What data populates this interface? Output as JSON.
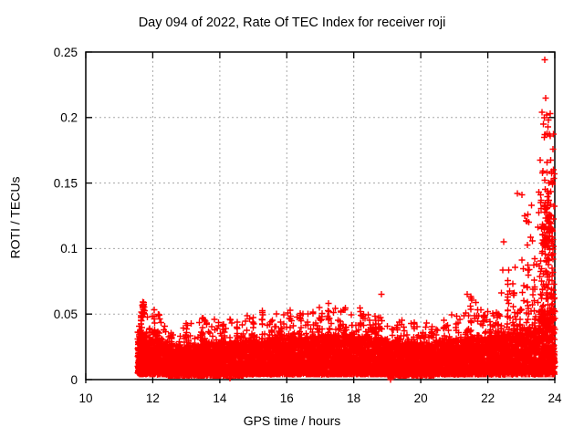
{
  "chart_data": {
    "type": "scatter",
    "title": "Day 094 of 2022, Rate Of TEC Index for receiver roji",
    "xlabel": "GPS time / hours",
    "ylabel": "ROTI / TECUs",
    "xlim": [
      10,
      24
    ],
    "ylim": [
      0,
      0.25
    ],
    "xticks": [
      10,
      12,
      14,
      16,
      18,
      20,
      22,
      24
    ],
    "xtick_labels": [
      "10",
      "12",
      "14",
      "16",
      "18",
      "20",
      "22",
      "24"
    ],
    "yticks": [
      0,
      0.05,
      0.1,
      0.15,
      0.2,
      0.25
    ],
    "ytick_labels": [
      "0",
      "0.05",
      "0.1",
      "0.15",
      "0.2",
      "0.25"
    ],
    "grid": true,
    "legend": "none",
    "marker": "plus",
    "marker_color": "#ff0000",
    "grid_color": "#a8a8a8",
    "border_color": "#000000",
    "background_color": "#ffffff",
    "data_extent": {
      "t_start": 11.55,
      "t_end": 24.0,
      "y_peak": 0.244,
      "y_peak_time": 23.7
    },
    "band_segments": [
      {
        "t0": 11.55,
        "t1": 11.82,
        "n": 260,
        "ymin": 0.004,
        "ydense": 0.034,
        "ytail": 0.05,
        "tailp": 0.05
      },
      {
        "t0": 11.82,
        "t1": 12.45,
        "n": 480,
        "ymin": 0.004,
        "ydense": 0.03,
        "ytail": 0.05,
        "tailp": 0.05
      },
      {
        "t0": 12.45,
        "t1": 13.45,
        "n": 700,
        "ymin": 0.003,
        "ydense": 0.026,
        "ytail": 0.044,
        "tailp": 0.05
      },
      {
        "t0": 13.45,
        "t1": 14.7,
        "n": 860,
        "ymin": 0.003,
        "ydense": 0.028,
        "ytail": 0.046,
        "tailp": 0.05
      },
      {
        "t0": 14.7,
        "t1": 15.6,
        "n": 620,
        "ymin": 0.004,
        "ydense": 0.03,
        "ytail": 0.05,
        "tailp": 0.06
      },
      {
        "t0": 15.6,
        "t1": 16.8,
        "n": 820,
        "ymin": 0.004,
        "ydense": 0.032,
        "ytail": 0.052,
        "tailp": 0.06
      },
      {
        "t0": 16.8,
        "t1": 17.8,
        "n": 700,
        "ymin": 0.004,
        "ydense": 0.033,
        "ytail": 0.055,
        "tailp": 0.06
      },
      {
        "t0": 17.8,
        "t1": 19.0,
        "n": 820,
        "ymin": 0.004,
        "ydense": 0.032,
        "ytail": 0.055,
        "tailp": 0.06
      },
      {
        "t0": 19.0,
        "t1": 20.4,
        "n": 920,
        "ymin": 0.003,
        "ydense": 0.028,
        "ytail": 0.046,
        "tailp": 0.05
      },
      {
        "t0": 20.4,
        "t1": 21.3,
        "n": 600,
        "ymin": 0.004,
        "ydense": 0.03,
        "ytail": 0.05,
        "tailp": 0.05
      },
      {
        "t0": 21.3,
        "t1": 21.7,
        "n": 270,
        "ymin": 0.004,
        "ydense": 0.032,
        "ytail": 0.062,
        "tailp": 0.07
      },
      {
        "t0": 21.7,
        "t1": 22.4,
        "n": 470,
        "ymin": 0.004,
        "ydense": 0.032,
        "ytail": 0.055,
        "tailp": 0.06
      },
      {
        "t0": 22.4,
        "t1": 23.0,
        "n": 400,
        "ymin": 0.004,
        "ydense": 0.036,
        "ytail": 0.09,
        "tailp": 0.07
      },
      {
        "t0": 23.0,
        "t1": 23.55,
        "n": 380,
        "ymin": 0.004,
        "ydense": 0.04,
        "ytail": 0.13,
        "tailp": 0.08
      },
      {
        "t0": 23.55,
        "t1": 24.0,
        "n": 430,
        "ymin": 0.004,
        "ydense": 0.052,
        "ytail": 0.19,
        "tailp": 0.16
      }
    ],
    "column_spikes": [
      [
        11.72,
        0.06,
        16,
        0.048,
        0.07
      ],
      [
        11.66,
        0.052,
        8,
        0.036,
        0.04
      ],
      [
        12.05,
        0.056,
        8
      ],
      [
        12.18,
        0.05,
        6
      ],
      [
        12.55,
        0.042,
        5
      ],
      [
        13.0,
        0.04,
        5
      ],
      [
        13.49,
        0.048,
        7
      ],
      [
        14.1,
        0.044,
        6
      ],
      [
        14.52,
        0.047,
        6
      ],
      [
        15.0,
        0.049,
        7
      ],
      [
        15.28,
        0.053,
        7
      ],
      [
        15.55,
        0.05,
        6
      ],
      [
        15.83,
        0.052,
        7
      ],
      [
        16.1,
        0.055,
        8
      ],
      [
        16.4,
        0.048,
        6
      ],
      [
        16.78,
        0.052,
        7
      ],
      [
        17.05,
        0.05,
        6
      ],
      [
        17.25,
        0.057,
        7
      ],
      [
        17.6,
        0.054,
        7
      ],
      [
        17.95,
        0.05,
        6
      ],
      [
        18.2,
        0.052,
        7
      ],
      [
        18.42,
        0.054,
        7
      ],
      [
        18.65,
        0.05,
        6
      ],
      [
        19.3,
        0.046,
        5
      ],
      [
        19.8,
        0.044,
        5
      ],
      [
        20.33,
        0.041,
        5
      ],
      [
        20.7,
        0.047,
        6
      ],
      [
        21.06,
        0.051,
        6
      ],
      [
        21.5,
        0.068,
        10
      ],
      [
        21.9,
        0.05,
        6
      ],
      [
        22.07,
        0.048,
        6
      ],
      [
        22.3,
        0.055,
        7
      ],
      [
        22.6,
        0.077,
        9
      ],
      [
        22.78,
        0.086,
        8
      ],
      [
        22.97,
        0.058,
        7
      ],
      [
        23.19,
        0.086,
        8
      ],
      [
        23.4,
        0.09,
        8
      ],
      [
        23.62,
        0.12,
        10,
        0.05,
        0.05
      ],
      [
        23.72,
        0.135,
        26,
        0.095,
        0.12
      ],
      [
        23.85,
        0.128,
        20,
        0.098,
        0.1
      ],
      [
        23.93,
        0.116,
        12,
        0.088,
        0.06
      ],
      [
        23.65,
        0.122,
        10,
        0.092,
        0.05
      ],
      [
        23.8,
        0.1,
        14,
        0.06,
        0.15
      ],
      [
        23.95,
        0.095,
        10,
        0.055,
        0.08
      ]
    ],
    "outliers": [
      [
        23.7,
        0.244
      ],
      [
        23.73,
        0.215
      ],
      [
        23.62,
        0.204
      ],
      [
        23.68,
        0.2
      ],
      [
        23.76,
        0.202
      ],
      [
        23.81,
        0.198
      ],
      [
        23.86,
        0.203
      ],
      [
        23.66,
        0.195
      ],
      [
        23.79,
        0.193
      ],
      [
        23.72,
        0.187
      ],
      [
        23.87,
        0.186
      ],
      [
        23.95,
        0.176
      ],
      [
        23.65,
        0.159
      ],
      [
        23.77,
        0.158
      ],
      [
        23.7,
        0.152
      ],
      [
        23.82,
        0.15
      ],
      [
        23.89,
        0.151
      ],
      [
        23.93,
        0.149
      ],
      [
        23.52,
        0.143
      ],
      [
        23.58,
        0.141
      ],
      [
        22.88,
        0.142
      ],
      [
        23.02,
        0.141
      ],
      [
        23.1,
        0.125
      ],
      [
        23.14,
        0.121
      ],
      [
        23.3,
        0.133
      ],
      [
        23.19,
        0.126
      ],
      [
        23.22,
        0.12
      ],
      [
        22.48,
        0.105
      ],
      [
        23.33,
        0.106
      ],
      [
        23.24,
        0.084
      ],
      [
        23.46,
        0.088
      ],
      [
        21.39,
        0.065
      ],
      [
        18.83,
        0.065
      ],
      [
        17.25,
        0.058
      ],
      [
        19.1,
        0.0
      ],
      [
        14.3,
        0.001
      ]
    ],
    "seed": 20220940
  }
}
